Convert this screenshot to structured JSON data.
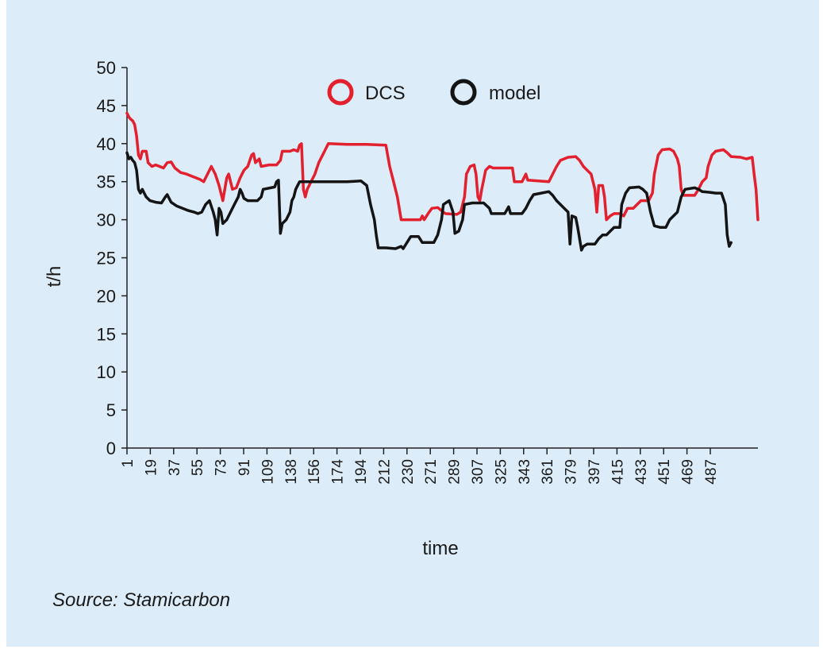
{
  "source_note": "Source: Stamicarbon",
  "colors": {
    "background": "#dcecf8",
    "dcs": "#e3202e",
    "model": "#141414",
    "axis": "#222222"
  },
  "chart_data": {
    "type": "line",
    "title": "",
    "xlabel": "time",
    "ylabel": "t/h",
    "ylim": [
      0,
      50
    ],
    "yticks": [
      0,
      5,
      10,
      15,
      20,
      25,
      30,
      35,
      40,
      45,
      50
    ],
    "xtick_labels": [
      "1",
      "19",
      "37",
      "55",
      "73",
      "91",
      "109",
      "138",
      "156",
      "174",
      "194",
      "212",
      "230",
      "271",
      "289",
      "307",
      "325",
      "343",
      "361",
      "379",
      "397",
      "415",
      "433",
      "451",
      "469",
      "487"
    ],
    "legend": {
      "position": "top-center",
      "entries": [
        "DCS",
        "model"
      ]
    },
    "grid": false,
    "series": [
      {
        "name": "DCS",
        "color": "#e3202e",
        "points": [
          [
            0,
            44
          ],
          [
            1,
            43.5
          ],
          [
            2,
            43.2
          ],
          [
            3,
            43
          ],
          [
            4,
            42.5
          ],
          [
            5,
            41
          ],
          [
            6,
            38.5
          ],
          [
            7,
            38
          ],
          [
            8,
            39
          ],
          [
            10,
            39
          ],
          [
            11,
            37.5
          ],
          [
            13,
            37
          ],
          [
            15,
            37.2
          ],
          [
            17,
            37
          ],
          [
            19,
            36.8
          ],
          [
            21,
            37.5
          ],
          [
            23,
            37.6
          ],
          [
            25,
            36.8
          ],
          [
            28,
            36.2
          ],
          [
            31,
            36
          ],
          [
            34,
            35.7
          ],
          [
            36,
            35.5
          ],
          [
            38,
            35.3
          ],
          [
            40,
            35
          ],
          [
            42,
            36
          ],
          [
            44,
            37
          ],
          [
            46,
            36
          ],
          [
            48,
            34.5
          ],
          [
            50,
            32.5
          ],
          [
            52,
            35.5
          ],
          [
            53,
            36
          ],
          [
            54,
            35
          ],
          [
            55,
            34
          ],
          [
            57,
            34.2
          ],
          [
            59,
            35.5
          ],
          [
            61,
            36.5
          ],
          [
            63,
            37
          ],
          [
            65,
            38.5
          ],
          [
            66,
            38.7
          ],
          [
            67,
            37.5
          ],
          [
            69,
            38
          ],
          [
            70,
            37
          ],
          [
            74,
            37.2
          ],
          [
            78,
            37.2
          ],
          [
            80,
            37.8
          ],
          [
            81,
            39
          ],
          [
            85,
            39
          ],
          [
            87,
            39.2
          ],
          [
            89,
            39
          ],
          [
            90,
            39.8
          ],
          [
            91,
            40
          ],
          [
            92,
            34
          ],
          [
            93,
            33
          ],
          [
            94,
            34
          ],
          [
            96,
            35
          ],
          [
            98,
            36
          ],
          [
            100,
            37.5
          ],
          [
            102,
            38.5
          ],
          [
            104,
            39.5
          ],
          [
            105,
            40
          ],
          [
            115,
            39.9
          ],
          [
            125,
            39.9
          ],
          [
            135,
            39.8
          ],
          [
            137,
            37
          ],
          [
            139,
            35
          ],
          [
            141,
            33
          ],
          [
            143,
            30
          ],
          [
            148,
            30
          ],
          [
            153,
            30
          ],
          [
            154,
            30.5
          ],
          [
            155,
            30
          ],
          [
            157,
            30.8
          ],
          [
            159,
            31.5
          ],
          [
            162,
            31.6
          ],
          [
            165,
            31
          ],
          [
            166,
            30.8
          ],
          [
            172,
            30.7
          ],
          [
            174,
            31
          ],
          [
            176,
            33
          ],
          [
            177,
            36
          ],
          [
            179,
            37
          ],
          [
            181,
            37.2
          ],
          [
            182,
            36
          ],
          [
            183,
            33
          ],
          [
            184,
            32.5
          ],
          [
            185,
            34
          ],
          [
            187,
            36.5
          ],
          [
            189,
            37
          ],
          [
            191,
            36.8
          ],
          [
            196,
            36.8
          ],
          [
            201,
            36.8
          ],
          [
            202,
            35
          ],
          [
            206,
            35
          ],
          [
            208,
            36
          ],
          [
            209,
            35.2
          ],
          [
            220,
            35
          ],
          [
            222,
            36
          ],
          [
            224,
            37
          ],
          [
            226,
            37.8
          ],
          [
            230,
            38.2
          ],
          [
            234,
            38.3
          ],
          [
            236,
            37.8
          ],
          [
            238,
            37
          ],
          [
            240,
            36.5
          ],
          [
            242,
            36
          ],
          [
            244,
            34
          ],
          [
            245,
            31
          ],
          [
            246,
            34.5
          ],
          [
            248,
            34.5
          ],
          [
            249,
            33
          ],
          [
            250,
            30
          ],
          [
            252,
            30.5
          ],
          [
            254,
            30.8
          ],
          [
            257,
            30.8
          ],
          [
            259,
            30.5
          ],
          [
            261,
            31.5
          ],
          [
            264,
            31.5
          ],
          [
            266,
            32
          ],
          [
            268,
            32.5
          ],
          [
            272,
            32.5
          ],
          [
            274,
            33.5
          ],
          [
            275,
            36
          ],
          [
            277,
            38.5
          ],
          [
            279,
            39.2
          ],
          [
            283,
            39.3
          ],
          [
            285,
            39
          ],
          [
            287,
            38
          ],
          [
            288,
            37
          ],
          [
            289,
            34
          ],
          [
            290,
            33.2
          ],
          [
            296,
            33.2
          ],
          [
            298,
            34
          ],
          [
            300,
            35
          ],
          [
            302,
            35.5
          ],
          [
            303,
            37
          ],
          [
            305,
            38.5
          ],
          [
            307,
            39
          ],
          [
            311,
            39.2
          ],
          [
            313,
            38.8
          ],
          [
            315,
            38.3
          ],
          [
            320,
            38.2
          ],
          [
            323,
            38
          ],
          [
            326,
            38.2
          ],
          [
            327,
            36
          ],
          [
            328,
            34
          ],
          [
            329,
            30
          ]
        ]
      },
      {
        "name": "model",
        "color": "#141414",
        "points": [
          [
            0,
            38.8
          ],
          [
            1,
            38
          ],
          [
            2,
            38.2
          ],
          [
            3,
            37.8
          ],
          [
            4,
            37.5
          ],
          [
            5,
            36.5
          ],
          [
            6,
            34
          ],
          [
            7,
            33.5
          ],
          [
            8,
            34
          ],
          [
            9,
            33.5
          ],
          [
            10,
            33
          ],
          [
            12,
            32.5
          ],
          [
            15,
            32.3
          ],
          [
            18,
            32.2
          ],
          [
            20,
            33
          ],
          [
            21,
            33.3
          ],
          [
            23,
            32.3
          ],
          [
            26,
            31.8
          ],
          [
            29,
            31.5
          ],
          [
            32,
            31.2
          ],
          [
            35,
            31
          ],
          [
            37,
            30.8
          ],
          [
            39,
            31
          ],
          [
            41,
            32
          ],
          [
            43,
            32.5
          ],
          [
            45,
            31
          ],
          [
            46,
            30
          ],
          [
            47,
            28
          ],
          [
            48,
            31.5
          ],
          [
            49,
            31
          ],
          [
            50,
            29.5
          ],
          [
            52,
            30
          ],
          [
            54,
            31
          ],
          [
            56,
            32
          ],
          [
            58,
            33
          ],
          [
            59,
            34
          ],
          [
            60,
            33.5
          ],
          [
            61,
            32.8
          ],
          [
            63,
            32.5
          ],
          [
            66,
            32.5
          ],
          [
            68,
            32.5
          ],
          [
            70,
            33
          ],
          [
            71,
            34
          ],
          [
            75,
            34.2
          ],
          [
            77,
            34.3
          ],
          [
            78,
            35
          ],
          [
            79,
            35.2
          ],
          [
            80,
            28.2
          ],
          [
            81,
            29.5
          ],
          [
            83,
            30
          ],
          [
            85,
            31
          ],
          [
            86,
            32.5
          ],
          [
            87,
            33
          ],
          [
            88,
            34
          ],
          [
            90,
            35
          ],
          [
            105,
            35
          ],
          [
            115,
            35
          ],
          [
            122,
            35.1
          ],
          [
            125,
            34.5
          ],
          [
            127,
            32
          ],
          [
            129,
            30
          ],
          [
            130,
            28
          ],
          [
            131,
            26.3
          ],
          [
            135,
            26.3
          ],
          [
            140,
            26.2
          ],
          [
            143,
            26.5
          ],
          [
            144,
            26.2
          ],
          [
            146,
            27
          ],
          [
            148,
            27.8
          ],
          [
            152,
            27.8
          ],
          [
            154,
            27
          ],
          [
            160,
            27
          ],
          [
            162,
            28
          ],
          [
            164,
            30
          ],
          [
            165,
            32
          ],
          [
            168,
            32.5
          ],
          [
            170,
            31
          ],
          [
            171,
            28.2
          ],
          [
            173,
            28.5
          ],
          [
            175,
            30
          ],
          [
            176,
            32
          ],
          [
            180,
            32.2
          ],
          [
            186,
            32.2
          ],
          [
            189,
            31.5
          ],
          [
            190,
            30.8
          ],
          [
            197,
            30.8
          ],
          [
            199,
            31.7
          ],
          [
            200,
            30.8
          ],
          [
            206,
            30.8
          ],
          [
            208,
            31.5
          ],
          [
            210,
            32.5
          ],
          [
            212,
            33.3
          ],
          [
            216,
            33.5
          ],
          [
            220,
            33.7
          ],
          [
            222,
            33.2
          ],
          [
            224,
            32.5
          ],
          [
            226,
            32
          ],
          [
            228,
            31.5
          ],
          [
            230,
            31
          ],
          [
            231,
            26.8
          ],
          [
            232,
            30.5
          ],
          [
            234,
            30.3
          ],
          [
            235,
            29
          ],
          [
            236,
            27.5
          ],
          [
            237,
            26
          ],
          [
            238,
            26.5
          ],
          [
            240,
            26.8
          ],
          [
            244,
            26.8
          ],
          [
            246,
            27.5
          ],
          [
            248,
            28
          ],
          [
            250,
            28
          ],
          [
            252,
            28.5
          ],
          [
            254,
            29
          ],
          [
            257,
            29
          ],
          [
            258,
            32
          ],
          [
            260,
            33.5
          ],
          [
            262,
            34.2
          ],
          [
            267,
            34.3
          ],
          [
            269,
            34
          ],
          [
            271,
            33.5
          ],
          [
            273,
            31
          ],
          [
            275,
            29.2
          ],
          [
            278,
            29
          ],
          [
            281,
            29
          ],
          [
            283,
            30
          ],
          [
            285,
            30.5
          ],
          [
            287,
            31
          ],
          [
            289,
            33
          ],
          [
            291,
            34
          ],
          [
            296,
            34.2
          ],
          [
            298,
            34
          ],
          [
            300,
            33.7
          ],
          [
            304,
            33.6
          ],
          [
            307,
            33.5
          ],
          [
            310,
            33.5
          ],
          [
            312,
            32
          ],
          [
            313,
            28
          ],
          [
            314,
            26.5
          ],
          [
            315,
            27
          ]
        ]
      }
    ],
    "x_range": [
      0,
      329
    ]
  }
}
